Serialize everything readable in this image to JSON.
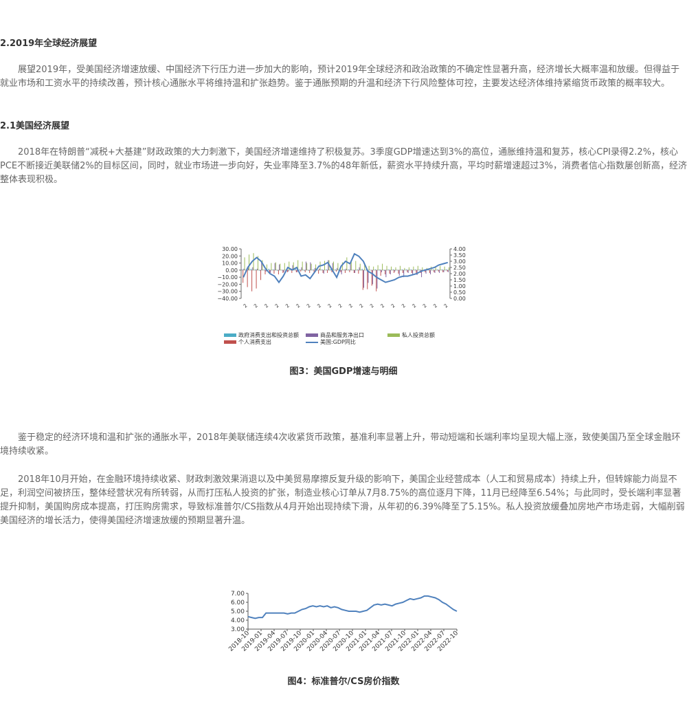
{
  "sections": {
    "h1": "2.2019年全球经济展望",
    "p1": "展望2019年，受美国经济增速放缓、中国经济下行压力进一步加大的影响，预计2019年全球经济和政治政策的不确定性显著升高，经济增长大概率温和放缓。但得益于就业市场和工资水平的持续改善，预计核心通胀水平将维持温和扩张趋势。鉴于通胀预期的升温和经济下行风险整体可控，主要发达经济体维持紧缩货币政策的概率较大。",
    "h2": "2.1美国经济展望",
    "p2": "2018年在特朗普“减税+大基建”财政政策的大力刺激下，美国经济增速维持了积极复苏。3季度GDP增速达到3%的高位，通胀维持温和复苏，核心CPI录得2.2%，核心PCE不断接近美联储2%的目标区间，同时，就业市场进一步向好，失业率降至3.7%的48年新低，薪资水平持续升高，平均时薪增速超过3%，消费者信心指数屡创新高，经济整体表现积极。",
    "p3": "鉴于稳定的经济环境和温和扩张的通胀水平，2018年美联储连续4次收紧货币政策，基准利率显著上升，带动短端和长端利率均呈现大幅上涨，致使美国乃至全球金融环境持续收紧。",
    "p4": "2018年10月开始，在金融环境持续收紧、财政刺激效果消退以及中美贸易摩擦反复升级的影响下，美国企业经营成本（人工和贸易成本）持续上升，但转嫁能力尚显不足，利润空间被挤压，整体经营状况有所转弱，从而打压私人投资的扩张，制造业核心订单从7月8.75%的高位逐月下降，11月已经降至6.54%；与此同时，受长端利率显著提升抑制，美国购房成本提高，打压购房需求，导致标准普尔/CS指数从4月开始出现持续下滑，从年初的6.39%降至了5.15%。私人投资放缓叠加房地产市场走弱，大幅削弱美国经济的增长活力，使得美国经济增速放缓的预期显著升温。"
  },
  "captions": {
    "fig3": "图3：美国GDP增速与明细",
    "fig4": "图4：标准普尔/CS房价指数"
  },
  "chart_data": [
    {
      "type": "bar",
      "id": "fig3",
      "yticks_left": [
        "30.00",
        "20.00",
        "10.00",
        "0.00",
        "−10.00",
        "−20.00",
        "−30.00",
        "−40.00"
      ],
      "yticks_right": [
        "4.00",
        "3.50",
        "3.00",
        "2.50",
        "2.00",
        "1.50",
        "1.00",
        "0.50",
        "0.00"
      ],
      "ylim_left": [
        -40,
        30
      ],
      "ylim_right": [
        0,
        4
      ],
      "x_tick_label": "2",
      "x_tick_count": 20,
      "series": [
        {
          "name": "政府消费支出和投资总额",
          "color": "#4bacc6",
          "values": [
            1,
            2,
            2,
            1,
            -1,
            1,
            2,
            1,
            -1,
            0,
            1,
            1,
            2,
            1,
            -1,
            -1,
            1,
            0,
            1,
            1,
            2,
            1,
            -1,
            1,
            1,
            0,
            1,
            2,
            1,
            0,
            1,
            1,
            -1,
            1,
            1,
            0,
            1,
            1,
            1,
            1,
            1,
            1,
            1,
            1,
            1,
            1,
            1
          ]
        },
        {
          "name": "个人消费支出",
          "color": "#c0504d",
          "values": [
            -18,
            -24,
            -30,
            -26,
            -14,
            -6,
            -4,
            -5,
            -6,
            -4,
            -3,
            -4,
            -3,
            -2,
            -3,
            -4,
            -4,
            -5,
            -4,
            -4,
            -3,
            -2,
            -3,
            -4,
            -3,
            -4,
            -5,
            -28,
            -27,
            -22,
            -30,
            -8,
            -6,
            -5,
            -4,
            -5,
            -4,
            -3,
            -4,
            -5,
            -4,
            -3,
            -4,
            -3,
            -2,
            -3,
            -2
          ]
        },
        {
          "name": "商品和服务净出口",
          "color": "#8064a2",
          "values": [
            2,
            3,
            4,
            2,
            12,
            -2,
            -4,
            10,
            8,
            -3,
            -2,
            7,
            -3,
            4,
            12,
            11,
            3,
            2,
            -5,
            14,
            10,
            3,
            -6,
            2,
            8,
            -4,
            4,
            -25,
            -18,
            -20,
            -26,
            -3,
            -10,
            -6,
            -2,
            -8,
            -10,
            -4,
            -6,
            -7,
            -10,
            -5,
            -6,
            -4,
            -4,
            -3,
            -3
          ]
        },
        {
          "name": "私人投资总额",
          "color": "#9bbb59",
          "values": [
            18,
            22,
            24,
            20,
            14,
            8,
            10,
            11,
            9,
            10,
            12,
            11,
            14,
            12,
            10,
            9,
            8,
            12,
            13,
            14,
            12,
            10,
            11,
            18,
            14,
            13,
            9,
            8,
            6,
            5,
            7,
            9,
            6,
            5,
            4,
            6,
            3,
            4,
            5,
            6,
            4,
            3,
            5,
            4,
            6,
            5,
            4
          ]
        },
        {
          "name": "美国:GDP同比",
          "color": "#4f81bd",
          "type": "line",
          "axis": "right",
          "values": [
            1.7,
            2.5,
            3.0,
            3.3,
            3.0,
            2.4,
            2.0,
            1.8,
            1.3,
            1.8,
            2.5,
            2.3,
            2.5,
            1.8,
            1.9,
            1.6,
            2.1,
            2.6,
            2.7,
            2.9,
            2.3,
            1.7,
            2.6,
            3.0,
            2.8,
            3.6,
            3.4,
            3.0,
            2.2,
            2.0,
            1.7,
            1.5,
            1.3,
            1.4,
            1.5,
            1.7,
            1.8,
            1.8,
            1.9,
            2.0,
            2.2,
            2.3,
            2.4,
            2.5,
            2.7,
            2.8,
            2.9
          ]
        }
      ],
      "legend_order": [
        "政府消费支出和投资总额",
        "商品和服务净出口",
        "私人投资总额",
        "个人消费支出",
        "美国:GDP同比"
      ]
    },
    {
      "type": "line",
      "id": "fig4",
      "ylim": [
        3,
        7
      ],
      "yticks": [
        "7.00",
        "6.00",
        "5.00",
        "4.00",
        "3.00"
      ],
      "xticks": [
        "2018-10",
        "2019-01",
        "2019-04",
        "2019-07",
        "2019-10",
        "2020-01",
        "2020-04",
        "2020-07",
        "2020-10",
        "2021-01",
        "2021-04",
        "2021-07",
        "2021-10",
        "2022-01",
        "2022-04",
        "2022-07",
        "2022-10"
      ],
      "color": "#4f81bd",
      "values": [
        4.4,
        4.3,
        4.2,
        4.3,
        4.3,
        4.8,
        4.8,
        4.8,
        4.8,
        4.8,
        4.8,
        4.7,
        4.8,
        4.8,
        5.0,
        5.2,
        5.3,
        5.5,
        5.6,
        5.5,
        5.6,
        5.5,
        5.6,
        5.4,
        5.5,
        5.4,
        5.2,
        5.1,
        5.0,
        5.0,
        5.0,
        4.9,
        5.0,
        5.1,
        5.4,
        5.7,
        5.8,
        5.7,
        5.8,
        5.7,
        5.6,
        5.8,
        5.9,
        6.0,
        6.2,
        6.4,
        6.3,
        6.4,
        6.5,
        6.7,
        6.7,
        6.6,
        6.5,
        6.3,
        6.0,
        5.8,
        5.5,
        5.2,
        5.0
      ]
    }
  ]
}
